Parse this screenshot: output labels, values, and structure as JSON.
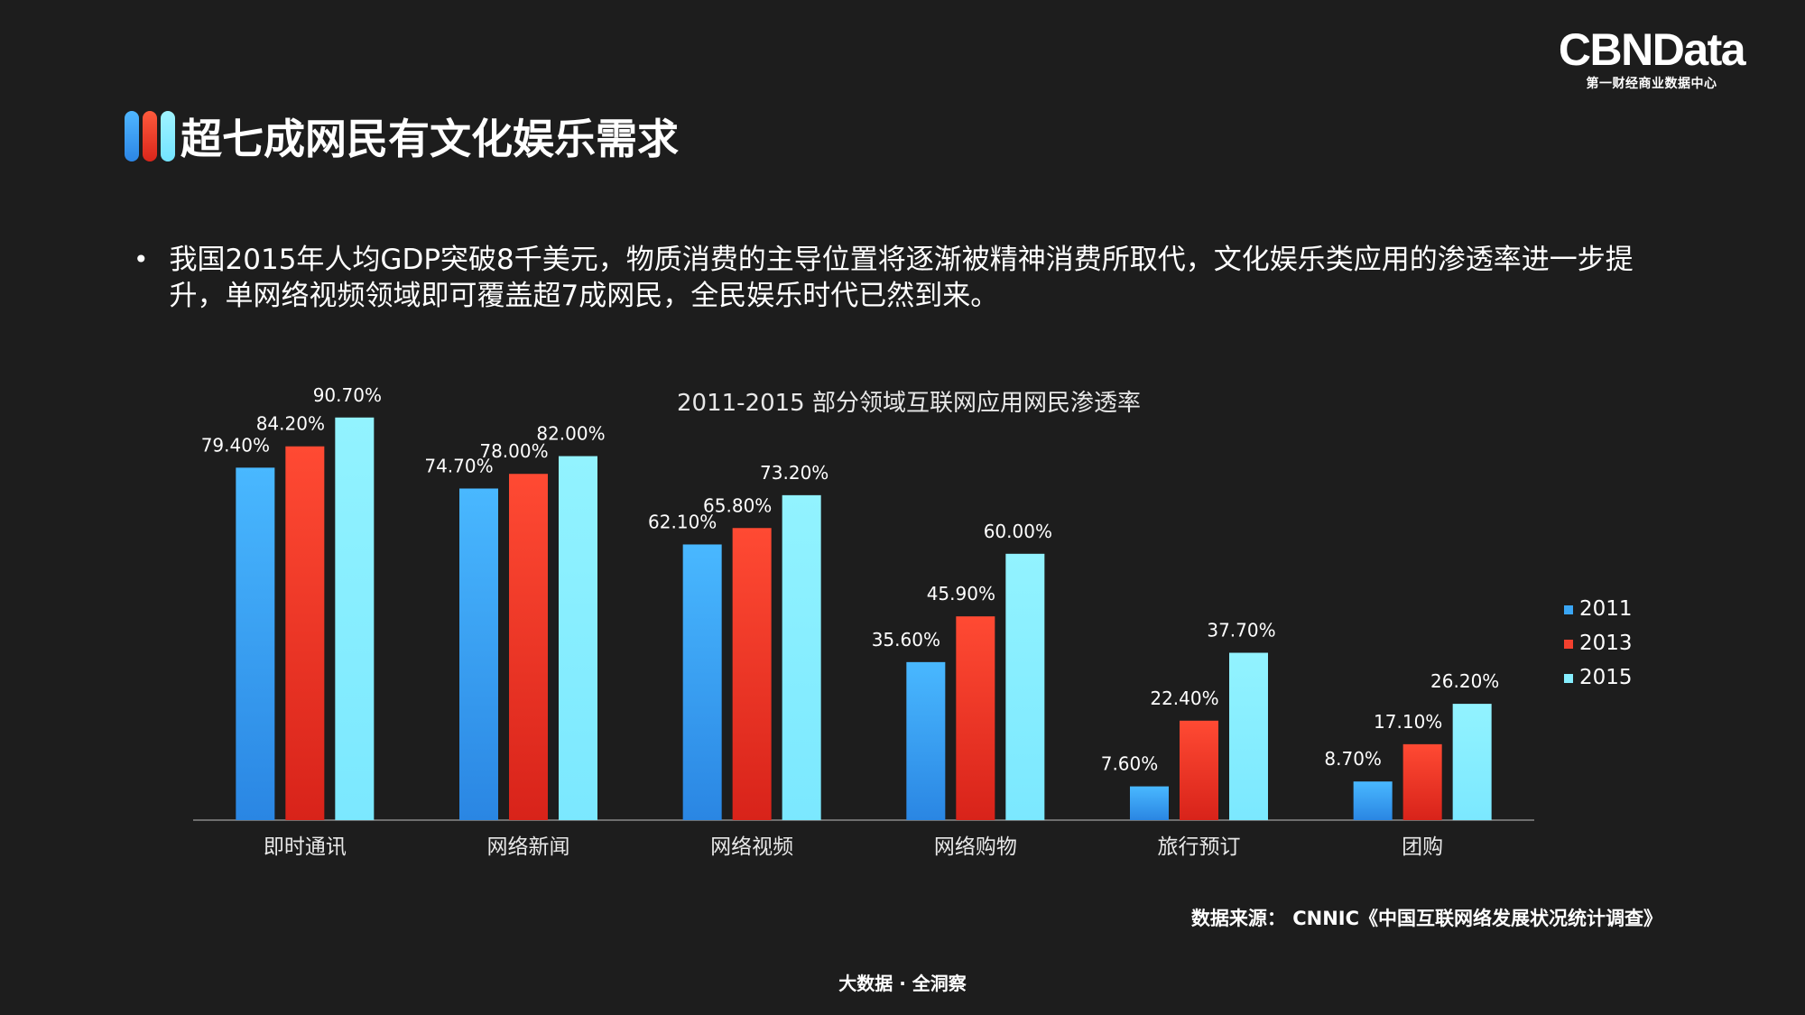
{
  "brand": {
    "name": "CBNData",
    "tagline": "第一财经商业数据中心"
  },
  "header": {
    "title": "超七成网民有文化娱乐需求"
  },
  "body": {
    "bullet": "我国2015年人均GDP突破8千美元，物质消费的主导位置将逐渐被精神消费所取代，文化娱乐类应用的渗透率进一步提升，单网络视频领域即可覆盖超7成网民，全民娱乐时代已然到来。"
  },
  "colors": {
    "series_2011": "#3aa6f5",
    "series_2013": "#f2402e",
    "series_2015": "#86efff",
    "background": "#1d1d1d"
  },
  "chart_data": {
    "type": "bar",
    "title": "2011-2015 部分领域互联网应用网民渗透率",
    "categories": [
      "即时通讯",
      "网络新闻",
      "网络视频",
      "网络购物",
      "旅行预订",
      "团购"
    ],
    "series": [
      {
        "name": "2011",
        "values": [
          79.4,
          74.7,
          62.1,
          35.6,
          7.6,
          8.7
        ],
        "labels": [
          "79.40%",
          "74.70%",
          "62.10%",
          "35.60%",
          "7.60%",
          "8.70%"
        ]
      },
      {
        "name": "2013",
        "values": [
          84.2,
          78.0,
          65.8,
          45.9,
          22.4,
          17.1
        ],
        "labels": [
          "84.20%",
          "78.00%",
          "65.80%",
          "45.90%",
          "22.40%",
          "17.10%"
        ]
      },
      {
        "name": "2015",
        "values": [
          90.7,
          82.0,
          73.2,
          60.0,
          37.7,
          26.2
        ],
        "labels": [
          "90.70%",
          "82.00%",
          "73.20%",
          "60.00%",
          "37.70%",
          "26.20%"
        ]
      }
    ],
    "ylim": [
      0,
      100
    ],
    "xlabel": "",
    "ylabel": "",
    "legend": "right",
    "grid": false
  },
  "footer": {
    "source": "数据来源： CNNIC《中国互联网络发展状况统计调查》",
    "slogan": "大数据 · 全洞察"
  }
}
